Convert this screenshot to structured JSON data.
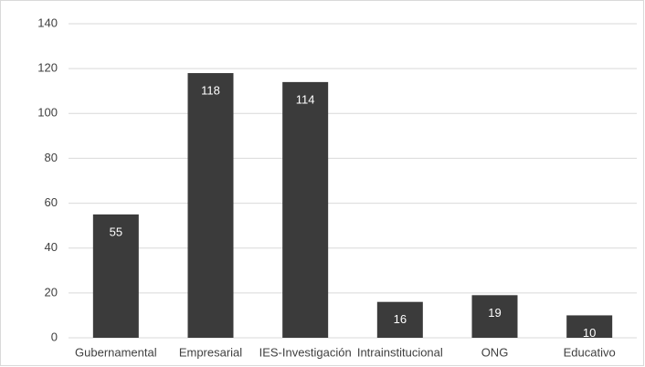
{
  "chart_data": {
    "type": "bar",
    "categories": [
      "Gubernamental",
      "Empresarial",
      "IES-Investigación",
      "Intrainstitucional",
      "ONG",
      "Educativo"
    ],
    "values": [
      55,
      118,
      114,
      16,
      19,
      10
    ],
    "color": "#3b3b3b",
    "ylim": [
      0,
      140
    ],
    "yticks": [
      0,
      20,
      40,
      60,
      80,
      100,
      120,
      140
    ],
    "grid": true
  }
}
